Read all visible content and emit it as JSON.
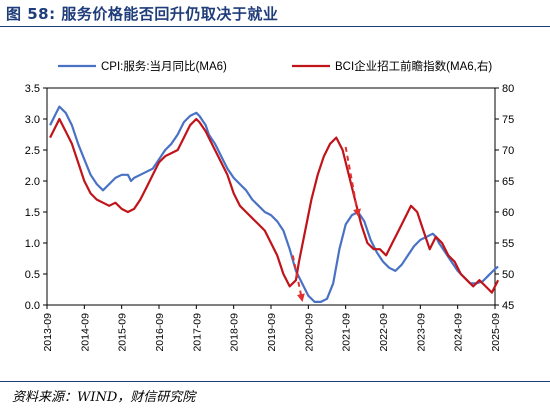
{
  "figure": {
    "title": "图 58:  服务价格能否回升仍取决于就业",
    "source": "资料来源：WIND，财信研究院"
  },
  "chart_data": {
    "type": "line",
    "x_ticks": [
      "2013-09",
      "2014-09",
      "2015-09",
      "2016-09",
      "2017-09",
      "2018-09",
      "2019-09",
      "2020-09",
      "2021-09",
      "2022-09",
      "2023-09",
      "2024-09",
      "2025-09"
    ],
    "x_start": "2013-09",
    "x_end": "2025-09",
    "left_axis": {
      "min": 0.0,
      "max": 3.5,
      "ticks": [
        "0.0",
        "0.5",
        "1.0",
        "1.5",
        "2.0",
        "2.5",
        "3.0",
        "3.5"
      ]
    },
    "right_axis": {
      "min": 45,
      "max": 80,
      "ticks": [
        "45",
        "50",
        "55",
        "60",
        "65",
        "70",
        "75",
        "80"
      ]
    },
    "legend_position": "top",
    "series": [
      {
        "name": "CPI:服务:当月同比(MA6)",
        "axis": "left",
        "color": "#4a72c4",
        "points": [
          [
            "2013-10",
            2.9
          ],
          [
            "2013-12",
            3.1
          ],
          [
            "2014-01",
            3.2
          ],
          [
            "2014-03",
            3.1
          ],
          [
            "2014-05",
            2.9
          ],
          [
            "2014-07",
            2.6
          ],
          [
            "2014-09",
            2.35
          ],
          [
            "2014-11",
            2.1
          ],
          [
            "2015-01",
            1.95
          ],
          [
            "2015-03",
            1.85
          ],
          [
            "2015-05",
            1.95
          ],
          [
            "2015-07",
            2.05
          ],
          [
            "2015-09",
            2.1
          ],
          [
            "2015-11",
            2.1
          ],
          [
            "2015-12",
            2.0
          ],
          [
            "2016-01",
            2.05
          ],
          [
            "2016-03",
            2.1
          ],
          [
            "2016-05",
            2.15
          ],
          [
            "2016-07",
            2.2
          ],
          [
            "2016-09",
            2.35
          ],
          [
            "2016-11",
            2.5
          ],
          [
            "2017-01",
            2.6
          ],
          [
            "2017-03",
            2.75
          ],
          [
            "2017-05",
            2.95
          ],
          [
            "2017-07",
            3.05
          ],
          [
            "2017-09",
            3.1
          ],
          [
            "2017-10",
            3.05
          ],
          [
            "2017-12",
            2.9
          ],
          [
            "2018-01",
            2.75
          ],
          [
            "2018-03",
            2.6
          ],
          [
            "2018-05",
            2.4
          ],
          [
            "2018-07",
            2.2
          ],
          [
            "2018-09",
            2.05
          ],
          [
            "2018-11",
            1.95
          ],
          [
            "2019-01",
            1.85
          ],
          [
            "2019-03",
            1.7
          ],
          [
            "2019-05",
            1.6
          ],
          [
            "2019-07",
            1.5
          ],
          [
            "2019-09",
            1.45
          ],
          [
            "2019-11",
            1.35
          ],
          [
            "2020-01",
            1.2
          ],
          [
            "2020-03",
            0.9
          ],
          [
            "2020-05",
            0.55
          ],
          [
            "2020-07",
            0.35
          ],
          [
            "2020-09",
            0.15
          ],
          [
            "2020-11",
            0.05
          ],
          [
            "2021-01",
            0.05
          ],
          [
            "2021-03",
            0.1
          ],
          [
            "2021-05",
            0.35
          ],
          [
            "2021-07",
            0.9
          ],
          [
            "2021-09",
            1.3
          ],
          [
            "2021-11",
            1.45
          ],
          [
            "2022-01",
            1.5
          ],
          [
            "2022-03",
            1.35
          ],
          [
            "2022-05",
            1.05
          ],
          [
            "2022-07",
            0.85
          ],
          [
            "2022-09",
            0.7
          ],
          [
            "2022-11",
            0.6
          ],
          [
            "2023-01",
            0.55
          ],
          [
            "2023-03",
            0.65
          ],
          [
            "2023-05",
            0.8
          ],
          [
            "2023-07",
            0.95
          ],
          [
            "2023-09",
            1.05
          ],
          [
            "2023-11",
            1.1
          ],
          [
            "2024-01",
            1.15
          ],
          [
            "2024-02",
            1.1
          ],
          [
            "2024-03",
            1.0
          ],
          [
            "2024-05",
            0.85
          ],
          [
            "2024-07",
            0.7
          ],
          [
            "2024-09",
            0.55
          ],
          [
            "2024-11",
            0.45
          ],
          [
            "2025-01",
            0.35
          ],
          [
            "2025-03",
            0.35
          ],
          [
            "2025-05",
            0.38
          ],
          [
            "2025-07",
            0.48
          ],
          [
            "2025-09",
            0.58
          ],
          [
            "2025-10",
            0.62
          ]
        ]
      },
      {
        "name": "BCI企业招工前瞻指数(MA6,右)",
        "axis": "right",
        "color": "#c0141a",
        "points": [
          [
            "2013-10",
            72
          ],
          [
            "2013-12",
            74
          ],
          [
            "2014-01",
            75
          ],
          [
            "2014-03",
            73
          ],
          [
            "2014-05",
            71
          ],
          [
            "2014-07",
            68
          ],
          [
            "2014-09",
            65
          ],
          [
            "2014-11",
            63
          ],
          [
            "2015-01",
            62
          ],
          [
            "2015-03",
            61.5
          ],
          [
            "2015-05",
            61
          ],
          [
            "2015-07",
            61.5
          ],
          [
            "2015-09",
            60.5
          ],
          [
            "2015-11",
            60
          ],
          [
            "2016-01",
            60.5
          ],
          [
            "2016-03",
            62
          ],
          [
            "2016-05",
            64
          ],
          [
            "2016-07",
            66
          ],
          [
            "2016-09",
            68
          ],
          [
            "2016-11",
            69
          ],
          [
            "2017-01",
            69.5
          ],
          [
            "2017-03",
            70
          ],
          [
            "2017-05",
            72
          ],
          [
            "2017-07",
            74
          ],
          [
            "2017-09",
            75
          ],
          [
            "2017-10",
            74.5
          ],
          [
            "2017-12",
            73
          ],
          [
            "2018-01",
            72
          ],
          [
            "2018-03",
            70
          ],
          [
            "2018-05",
            68
          ],
          [
            "2018-07",
            66
          ],
          [
            "2018-09",
            63
          ],
          [
            "2018-11",
            61
          ],
          [
            "2019-01",
            60
          ],
          [
            "2019-03",
            59
          ],
          [
            "2019-05",
            58
          ],
          [
            "2019-07",
            57
          ],
          [
            "2019-09",
            55
          ],
          [
            "2019-11",
            53
          ],
          [
            "2020-01",
            50
          ],
          [
            "2020-03",
            48
          ],
          [
            "2020-05",
            49
          ],
          [
            "2020-06",
            52
          ],
          [
            "2020-08",
            57
          ],
          [
            "2020-10",
            62
          ],
          [
            "2020-12",
            66
          ],
          [
            "2021-02",
            69
          ],
          [
            "2021-04",
            71
          ],
          [
            "2021-06",
            72
          ],
          [
            "2021-08",
            70
          ],
          [
            "2021-10",
            66
          ],
          [
            "2021-12",
            62
          ],
          [
            "2022-02",
            58
          ],
          [
            "2022-04",
            55
          ],
          [
            "2022-06",
            54
          ],
          [
            "2022-08",
            54
          ],
          [
            "2022-10",
            53
          ],
          [
            "2022-12",
            55
          ],
          [
            "2023-02",
            57
          ],
          [
            "2023-04",
            59
          ],
          [
            "2023-06",
            61
          ],
          [
            "2023-08",
            60
          ],
          [
            "2023-10",
            57
          ],
          [
            "2023-12",
            54
          ],
          [
            "2024-02",
            56
          ],
          [
            "2024-04",
            55
          ],
          [
            "2024-06",
            53
          ],
          [
            "2024-08",
            52
          ],
          [
            "2024-10",
            50
          ],
          [
            "2024-12",
            49
          ],
          [
            "2025-02",
            48
          ],
          [
            "2025-04",
            49
          ],
          [
            "2025-06",
            48
          ],
          [
            "2025-08",
            47
          ],
          [
            "2025-09",
            48
          ],
          [
            "2025-10",
            49
          ]
        ]
      }
    ],
    "annotations": [
      {
        "type": "dashed-arrow",
        "color": "#e03030",
        "from": [
          "2021-09",
          70.5
        ],
        "to": [
          "2022-01",
          59.5
        ]
      },
      {
        "type": "dashed-arrow",
        "color": "#e03030",
        "from": [
          "2020-04",
          53.0
        ],
        "to": [
          "2020-07",
          45.8
        ]
      }
    ]
  }
}
